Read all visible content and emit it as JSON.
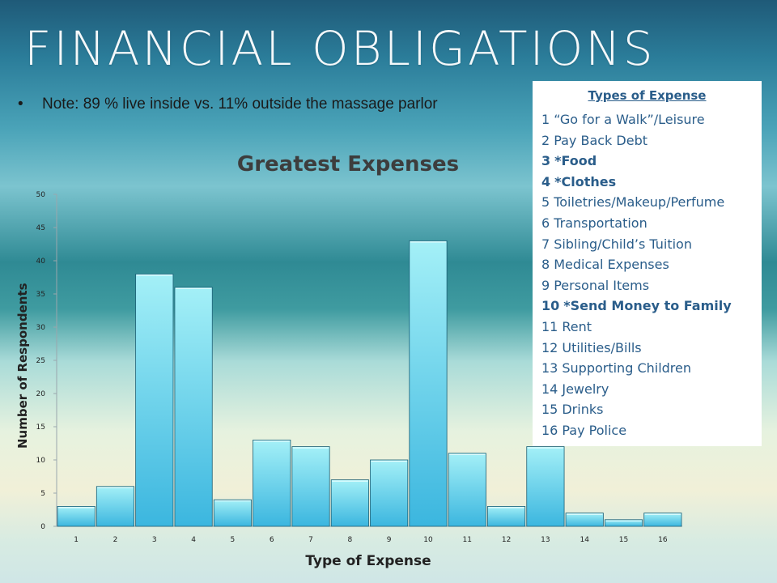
{
  "slide": {
    "title": "FINANCIAL OBLIGATIONS",
    "note_bullet": "•",
    "note": "Note: 89 % live inside vs. 11% outside the massage parlor"
  },
  "legend": {
    "title": "Types of Expense",
    "items": [
      {
        "num": "1",
        "label": "“Go for a Walk”/Leisure",
        "bold": false
      },
      {
        "num": "2",
        "label": "Pay Back Debt",
        "bold": false
      },
      {
        "num": "3",
        "label": "*Food",
        "bold": true
      },
      {
        "num": "4",
        "label": "*Clothes",
        "bold": true
      },
      {
        "num": "5",
        "label": "Toiletries/Makeup/Perfume",
        "bold": false
      },
      {
        "num": "6",
        "label": "Transportation",
        "bold": false
      },
      {
        "num": "7",
        "label": "Sibling/Child’s Tuition",
        "bold": false
      },
      {
        "num": "8",
        "label": "Medical Expenses",
        "bold": false
      },
      {
        "num": "9",
        "label": "Personal Items",
        "bold": false
      },
      {
        "num": "10",
        "label": "*Send Money to Family",
        "bold": true
      },
      {
        "num": "11",
        "label": "Rent",
        "bold": false
      },
      {
        "num": "12",
        "label": "Utilities/Bills",
        "bold": false
      },
      {
        "num": "13",
        "label": "Supporting Children",
        "bold": false
      },
      {
        "num": "14",
        "label": "Jewelry",
        "bold": false
      },
      {
        "num": "15",
        "label": "Drinks",
        "bold": false
      },
      {
        "num": "16",
        "label": "Pay Police",
        "bold": false
      }
    ]
  },
  "chart_data": {
    "type": "bar",
    "title": "Greatest Expenses",
    "xlabel": "Type of Expense",
    "ylabel": "Number of Respondents",
    "categories": [
      "1",
      "2",
      "3",
      "4",
      "5",
      "6",
      "7",
      "8",
      "9",
      "10",
      "11",
      "12",
      "13",
      "14",
      "15",
      "16"
    ],
    "values": [
      3,
      6,
      38,
      36,
      4,
      13,
      12,
      7,
      10,
      43,
      11,
      3,
      12,
      2,
      1,
      2
    ],
    "ylim": [
      0,
      50
    ],
    "yticks": [
      0,
      5,
      10,
      15,
      20,
      25,
      30,
      35,
      40,
      45,
      50
    ],
    "grid": false,
    "bar_color_top": "#a4f0f7",
    "bar_color_bottom": "#3bb6df",
    "bar_edge_color": "#1b5f76"
  }
}
